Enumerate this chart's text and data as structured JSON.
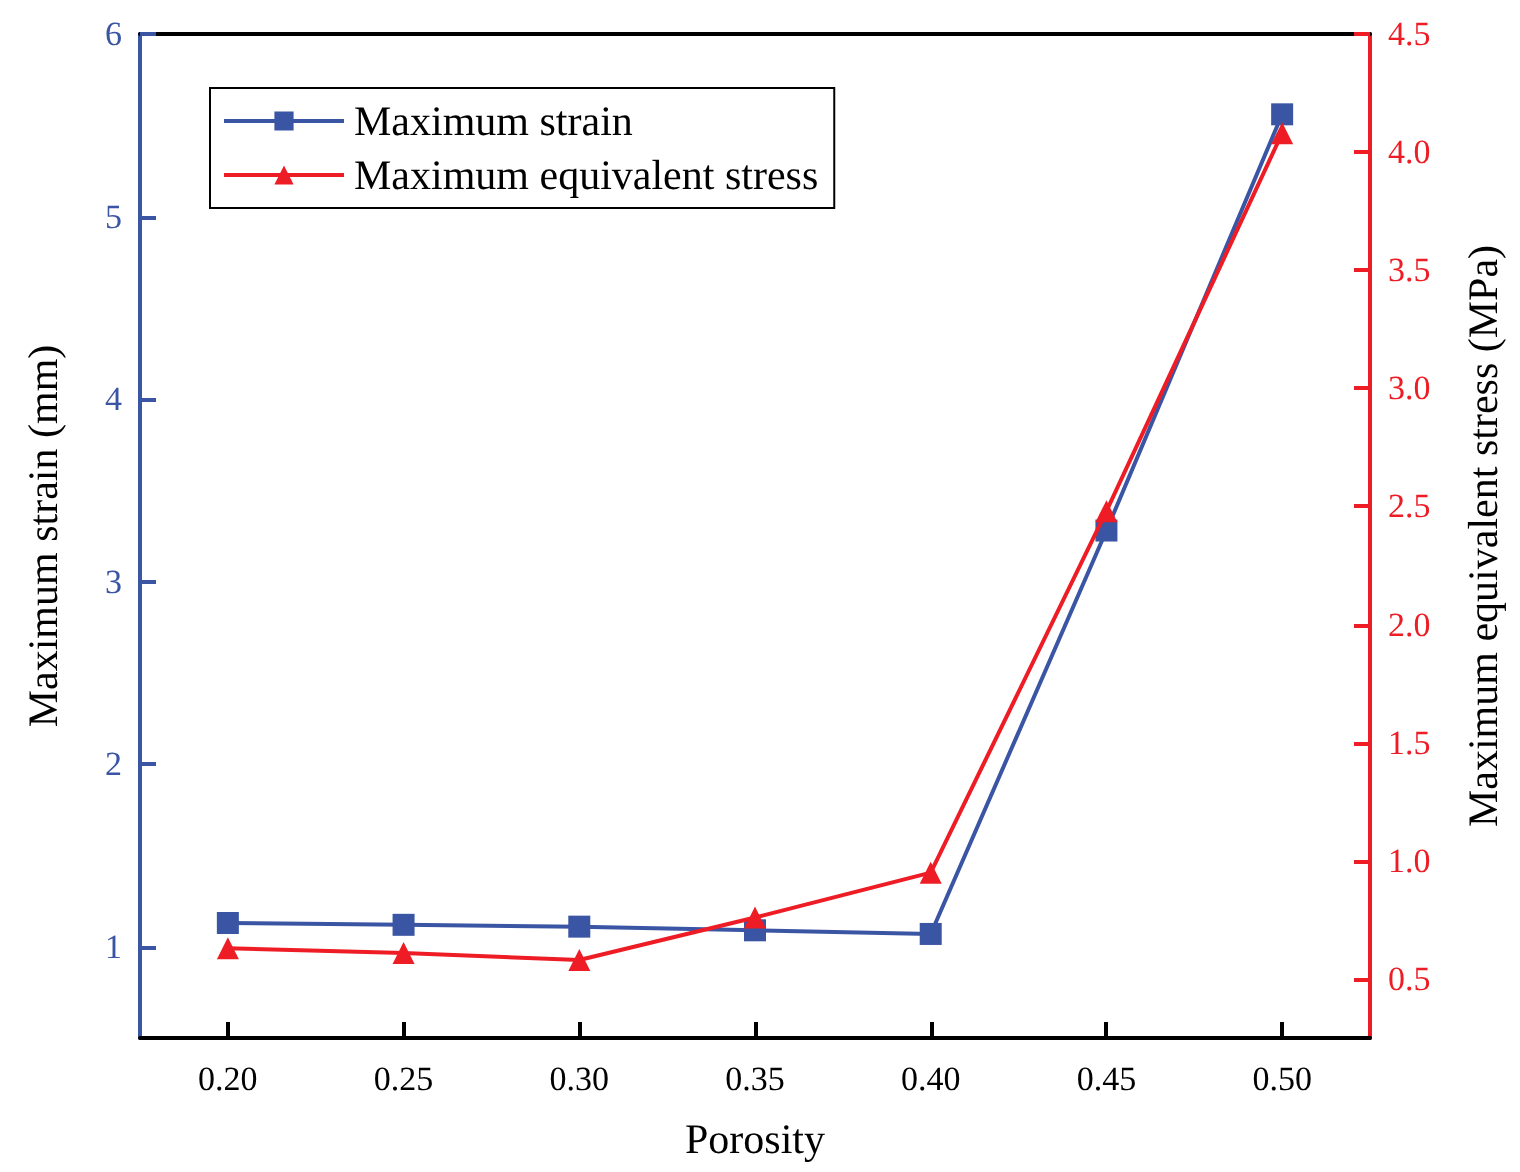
{
  "chart_data": {
    "type": "line",
    "xlabel": "Porosity",
    "ylabel": "Maximum strain (mm)",
    "y2label": "Maximum equivalent stress (MPa)",
    "x": [
      0.2,
      0.25,
      0.3,
      0.35,
      0.4,
      0.45,
      0.5
    ],
    "xlim": [
      0.175,
      0.525
    ],
    "xticks": [
      {
        "value": 0.2,
        "label": "0.20"
      },
      {
        "value": 0.25,
        "label": "0.25"
      },
      {
        "value": 0.3,
        "label": "0.30"
      },
      {
        "value": 0.35,
        "label": "0.35"
      },
      {
        "value": 0.4,
        "label": "0.40"
      },
      {
        "value": 0.45,
        "label": "0.45"
      },
      {
        "value": 0.5,
        "label": "0.50"
      }
    ],
    "ylim": [
      0.5,
      6
    ],
    "yticks": [
      1,
      2,
      3,
      4,
      5,
      6
    ],
    "y2lim": [
      0.25,
      4.5
    ],
    "y2ticks": [
      {
        "value": 0.5,
        "label": "0.5"
      },
      {
        "value": 1,
        "label": "1.0"
      },
      {
        "value": 1.5,
        "label": "1.5"
      },
      {
        "value": 2,
        "label": "2.0"
      },
      {
        "value": 2.5,
        "label": "2.5"
      },
      {
        "value": 3,
        "label": "3.0"
      },
      {
        "value": 3.5,
        "label": "3.5"
      },
      {
        "value": 4,
        "label": "4.0"
      },
      {
        "value": 4.5,
        "label": "4.5"
      }
    ],
    "series": [
      {
        "name": "Maximum strain",
        "color": "#3a55a4",
        "marker": "square",
        "values": [
          1.13,
          1.12,
          1.11,
          1.09,
          1.07,
          3.28,
          5.56
        ]
      },
      {
        "name": "Maximum equivalent stress",
        "color": "#ee1c24",
        "marker": "triangle",
        "axis": "y2",
        "values": [
          0.63,
          0.61,
          0.58,
          0.76,
          0.95,
          2.48,
          4.08
        ]
      }
    ],
    "legend": "top left",
    "grid": false,
    "line_style": "solid"
  }
}
